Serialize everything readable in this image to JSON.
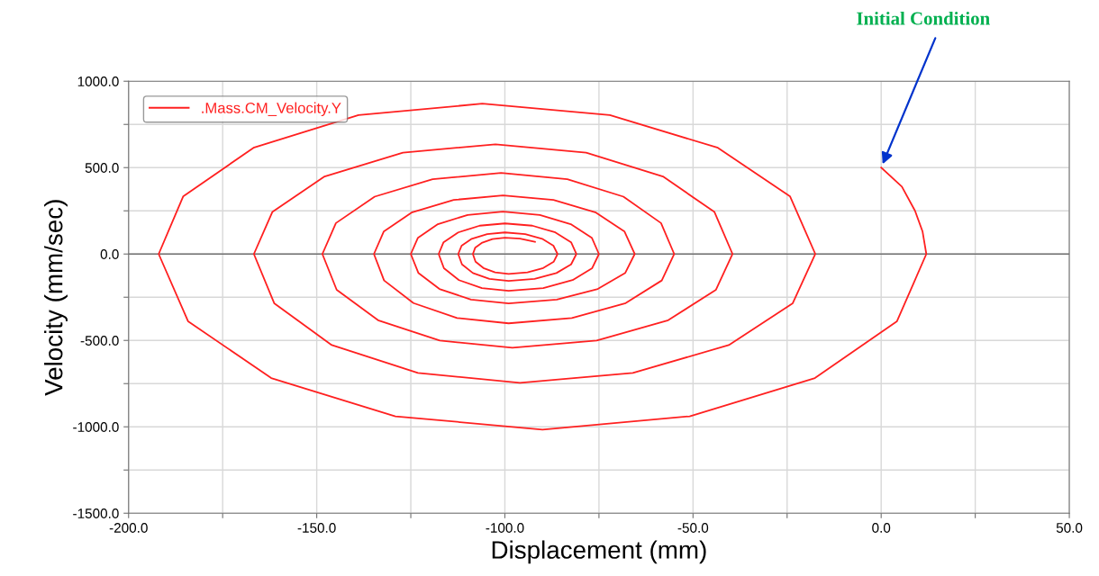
{
  "chart_data": {
    "type": "line",
    "xlabel": "Displacement (mm)",
    "ylabel": "Velocity (mm/sec)",
    "x": [
      0,
      5.5,
      9,
      11,
      12,
      4.2,
      -17.6,
      -50.9,
      -90,
      -129.1,
      -162.1,
      -184.2,
      -192,
      -185.5,
      -166.8,
      -138.9,
      -106,
      -72.1,
      -43.4,
      -24.2,
      -17.5,
      -23.5,
      -40.5,
      -66,
      -96,
      -123.1,
      -146,
      -161.3,
      -166.7,
      -161.8,
      -147.9,
      -127.1,
      -102.5,
      -78.4,
      -58,
      -44.3,
      -39.5,
      -43.9,
      -56.6,
      -75.6,
      -98,
      -117.3,
      -133.7,
      -144.7,
      -148.5,
      -144.9,
      -134.6,
      -119.2,
      -101,
      -83.4,
      -68.5,
      -58.5,
      -55,
      -58.3,
      -67.9,
      -82.2,
      -99,
      -112.7,
      -124.3,
      -132.1,
      -134.8,
      -132.2,
      -124.8,
      -113.6,
      -100.5,
      -87.1,
      -75.8,
      -68.2,
      -65.5,
      -68,
      -75.3,
      -86.2,
      -99,
      -109,
      -117.4,
      -123,
      -125,
      -123.1,
      -117.8,
      -109.9,
      -100.5,
      -90.7,
      -82.5,
      -76.9,
      -75,
      -76.8,
      -82,
      -89.8,
      -99,
      -106.1,
      -112.2,
      -116.2,
      -117.6,
      -116.3,
      -112.4,
      -106.7,
      -100,
      -92.7,
      -86.6,
      -82.4,
      -81,
      -82.4,
      -86.3,
      -92.1,
      -99,
      -104.1,
      -108.5,
      -111.4,
      -112.4,
      -111.5,
      -108.8,
      -104.7,
      -100,
      -94.6,
      -90.1,
      -87.1,
      -86,
      -87,
      -89.8,
      -94,
      -99,
      -102.6,
      -105.7,
      -107.8,
      -108.5,
      -107.9,
      -106,
      -103.3,
      -100,
      -96,
      -92
    ],
    "series": [
      {
        "name": ".Mass.CM_Velocity.Y",
        "color": "#ff2020",
        "values": [
          500,
          390,
          250,
          130,
          0,
          -389,
          -718,
          -939,
          -1016,
          -939,
          -718,
          -389,
          0,
          333,
          615,
          804,
          870,
          804,
          615,
          333,
          0,
          -285,
          -527,
          -688,
          -745,
          -688,
          -527,
          -285,
          0,
          243,
          449,
          587,
          635,
          587,
          449,
          243,
          0,
          -207,
          -383,
          -501,
          -542,
          -501,
          -383,
          -207,
          0,
          179,
          332,
          433,
          469,
          433,
          332,
          179,
          0,
          -153,
          -284,
          -370,
          -401,
          -370,
          -284,
          -153,
          0,
          130,
          240,
          313,
          339,
          313,
          240,
          130,
          0,
          -109,
          -202,
          -264,
          -286,
          -264,
          -202,
          -109,
          0,
          94,
          173,
          226,
          245,
          226,
          173,
          94,
          0,
          -82,
          -151,
          -197,
          -213,
          -197,
          -151,
          -82,
          0,
          68,
          125,
          164,
          177,
          164,
          125,
          68,
          0,
          -60,
          -110,
          -144,
          -156,
          -144,
          -110,
          -60,
          0,
          48,
          88,
          115,
          125,
          115,
          88,
          48,
          0,
          -44,
          -81,
          -106,
          -115,
          -106,
          -81,
          -44,
          0,
          36,
          66,
          87,
          94,
          89,
          70
        ]
      }
    ],
    "xlim": [
      -200,
      50
    ],
    "xticks": [
      {
        "value": -200,
        "label": "-200.0"
      },
      {
        "value": -175,
        "label": null
      },
      {
        "value": -150,
        "label": "-150.0"
      },
      {
        "value": -125,
        "label": null
      },
      {
        "value": -100,
        "label": "-100.0"
      },
      {
        "value": -75,
        "label": null
      },
      {
        "value": -50,
        "label": "-50.0"
      },
      {
        "value": -25,
        "label": null
      },
      {
        "value": 0,
        "label": "0.0"
      },
      {
        "value": 25,
        "label": null
      },
      {
        "value": 50,
        "label": "50.0"
      }
    ],
    "ylim": [
      -1500,
      1000
    ],
    "yticks": [
      {
        "value": -1500,
        "label": "-1500.0"
      },
      {
        "value": -1250,
        "label": null
      },
      {
        "value": -1000,
        "label": "-1000.0"
      },
      {
        "value": -750,
        "label": null
      },
      {
        "value": -500,
        "label": "-500.0"
      },
      {
        "value": -250,
        "label": null
      },
      {
        "value": 0,
        "label": "0.0"
      },
      {
        "value": 250,
        "label": null
      },
      {
        "value": 500,
        "label": "500.0"
      },
      {
        "value": 750,
        "label": null
      },
      {
        "value": 1000,
        "label": "1000.0"
      }
    ],
    "ref_lines": [
      {
        "axis": "y",
        "value": 0,
        "color": "#707070"
      }
    ],
    "annotations": [
      {
        "text": "Initial Condition",
        "x": 0,
        "y": 500
      }
    ],
    "grid": true,
    "legend": "top left",
    "line_style": "solid",
    "marker": "none"
  }
}
